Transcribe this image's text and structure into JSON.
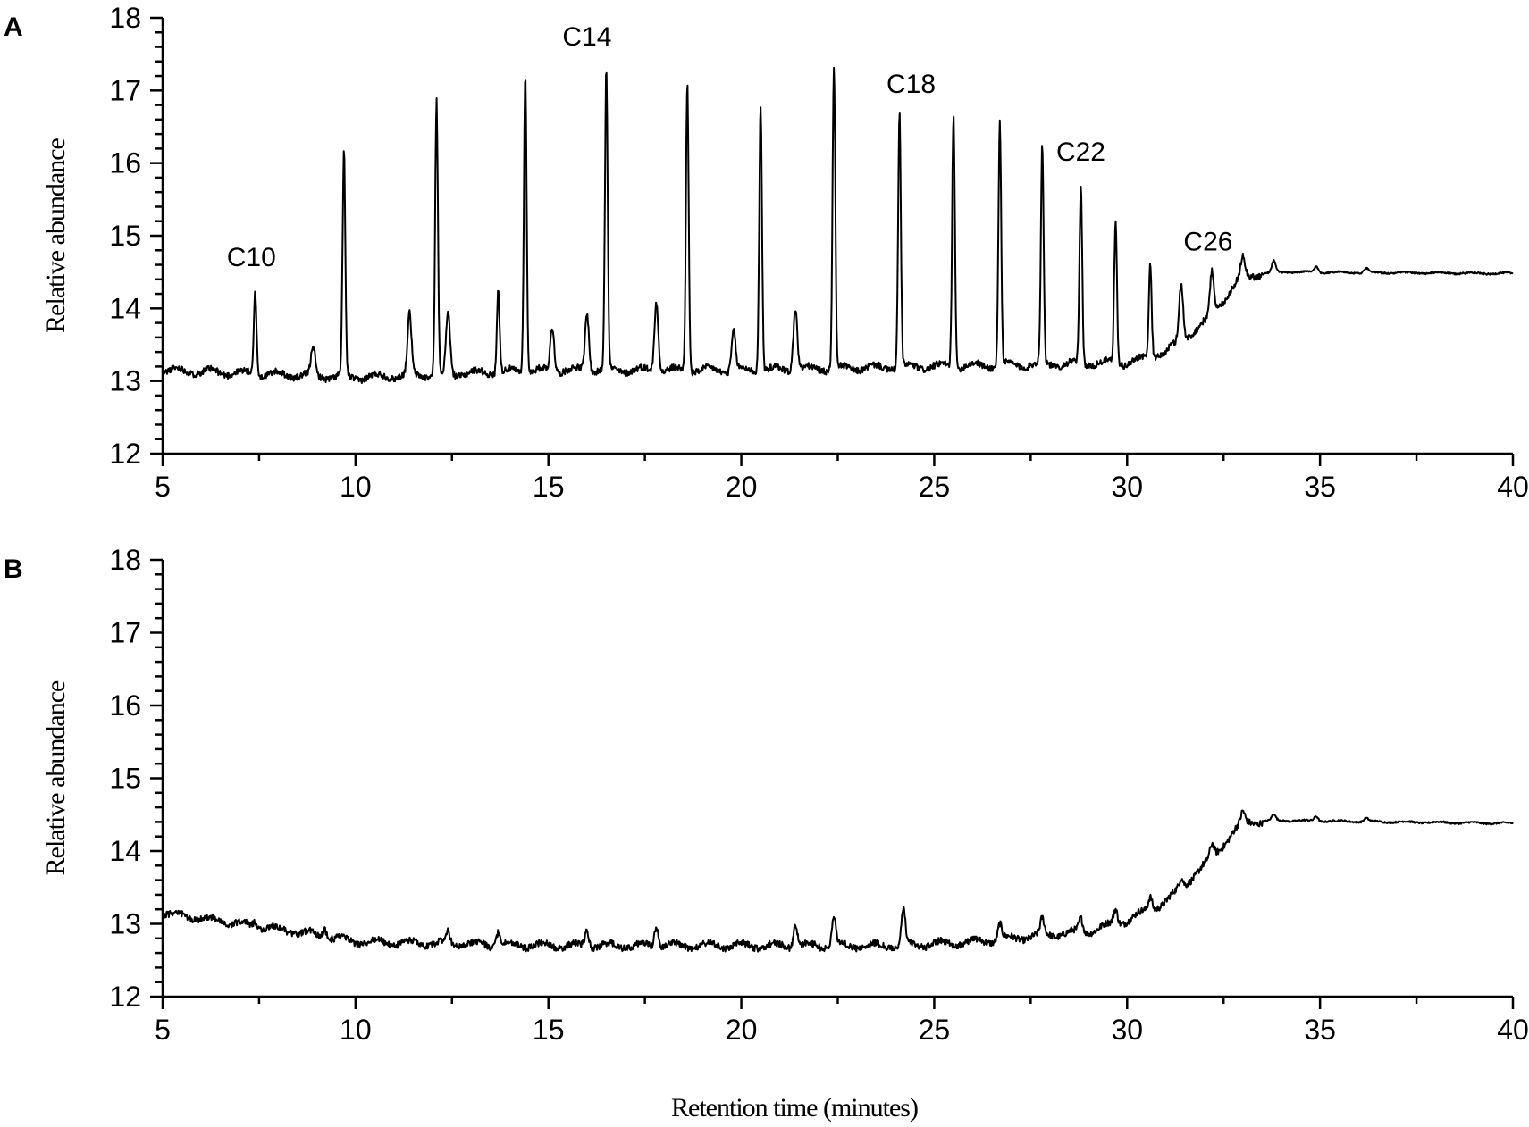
{
  "chart_data": [
    {
      "type": "line",
      "panel_label": "A",
      "title": "",
      "xlabel": "",
      "ylabel": "Relative abundance",
      "xlim": [
        5,
        40
      ],
      "ylim": [
        12,
        18
      ],
      "x_ticks": [
        5,
        10,
        15,
        20,
        25,
        30,
        35,
        40
      ],
      "y_ticks": [
        12,
        13,
        14,
        15,
        16,
        17,
        18
      ],
      "grid": false,
      "legend": "none",
      "baseline": [
        [
          5,
          13.15
        ],
        [
          10,
          13.05
        ],
        [
          15,
          13.15
        ],
        [
          20,
          13.15
        ],
        [
          25,
          13.2
        ],
        [
          30,
          13.25
        ],
        [
          31,
          13.4
        ],
        [
          32,
          13.8
        ],
        [
          33,
          14.45
        ],
        [
          34,
          14.5
        ],
        [
          40,
          14.48
        ]
      ],
      "peaks": [
        {
          "x": 7.4,
          "y": 14.25
        },
        {
          "x": 9.7,
          "y": 16.12
        },
        {
          "x": 12.1,
          "y": 16.85
        },
        {
          "x": 14.4,
          "y": 17.28
        },
        {
          "x": 16.5,
          "y": 17.3
        },
        {
          "x": 18.6,
          "y": 17.13
        },
        {
          "x": 20.5,
          "y": 16.85
        },
        {
          "x": 22.4,
          "y": 17.35
        },
        {
          "x": 24.1,
          "y": 16.68
        },
        {
          "x": 25.5,
          "y": 16.7
        },
        {
          "x": 26.7,
          "y": 16.58
        },
        {
          "x": 27.8,
          "y": 16.22
        },
        {
          "x": 28.8,
          "y": 15.7
        },
        {
          "x": 29.7,
          "y": 15.22
        },
        {
          "x": 30.6,
          "y": 14.65
        },
        {
          "x": 31.4,
          "y": 14.35
        },
        {
          "x": 32.2,
          "y": 14.5
        },
        {
          "x": 33.0,
          "y": 14.72
        },
        {
          "x": 13.7,
          "y": 14.28
        },
        {
          "x": 21.4,
          "y": 14.03
        },
        {
          "x": 11.4,
          "y": 13.9
        },
        {
          "x": 12.4,
          "y": 13.95
        },
        {
          "x": 17.8,
          "y": 14.12
        },
        {
          "x": 16.0,
          "y": 13.95
        },
        {
          "x": 15.1,
          "y": 13.75
        },
        {
          "x": 19.8,
          "y": 13.7
        },
        {
          "x": 8.9,
          "y": 13.47
        },
        {
          "x": 33.8,
          "y": 14.65
        },
        {
          "x": 34.9,
          "y": 14.58
        },
        {
          "x": 36.2,
          "y": 14.55
        }
      ],
      "annotations": [
        {
          "text": "C10",
          "x": 7.3,
          "y": 14.58
        },
        {
          "text": "C14",
          "x": 16.0,
          "y": 17.62
        },
        {
          "text": "C18",
          "x": 24.4,
          "y": 16.97
        },
        {
          "text": "C22",
          "x": 28.8,
          "y": 16.03
        },
        {
          "text": "C26",
          "x": 32.1,
          "y": 14.8
        }
      ]
    },
    {
      "type": "line",
      "panel_label": "B",
      "title": "",
      "xlabel": "Retention time (minutes)",
      "ylabel": "Relative abundance",
      "xlim": [
        5,
        40
      ],
      "ylim": [
        12,
        18
      ],
      "x_ticks": [
        5,
        10,
        15,
        20,
        25,
        30,
        35,
        40
      ],
      "y_ticks": [
        12,
        13,
        14,
        15,
        16,
        17,
        18
      ],
      "grid": false,
      "legend": "none",
      "baseline": [
        [
          5,
          13.15
        ],
        [
          7,
          13.0
        ],
        [
          9,
          12.85
        ],
        [
          10,
          12.75
        ],
        [
          15,
          12.7
        ],
        [
          20,
          12.7
        ],
        [
          24,
          12.7
        ],
        [
          26,
          12.75
        ],
        [
          28,
          12.85
        ],
        [
          29,
          12.9
        ],
        [
          30,
          13.05
        ],
        [
          31,
          13.3
        ],
        [
          32,
          13.8
        ],
        [
          33,
          14.4
        ],
        [
          34,
          14.42
        ],
        [
          40,
          14.38
        ]
      ],
      "peaks": [
        {
          "x": 7.4,
          "y": 13.05
        },
        {
          "x": 9.2,
          "y": 12.95
        },
        {
          "x": 12.4,
          "y": 12.88
        },
        {
          "x": 13.7,
          "y": 12.9
        },
        {
          "x": 16.0,
          "y": 12.92
        },
        {
          "x": 17.8,
          "y": 13.0
        },
        {
          "x": 21.4,
          "y": 13.02
        },
        {
          "x": 22.4,
          "y": 13.1
        },
        {
          "x": 24.2,
          "y": 13.18
        },
        {
          "x": 26.7,
          "y": 13.0
        },
        {
          "x": 27.8,
          "y": 13.05
        },
        {
          "x": 28.8,
          "y": 13.07
        },
        {
          "x": 29.7,
          "y": 13.2
        },
        {
          "x": 30.6,
          "y": 13.38
        },
        {
          "x": 31.4,
          "y": 13.62
        },
        {
          "x": 32.2,
          "y": 14.08
        },
        {
          "x": 33.0,
          "y": 14.52
        },
        {
          "x": 33.8,
          "y": 14.5
        },
        {
          "x": 34.9,
          "y": 14.48
        },
        {
          "x": 36.2,
          "y": 14.45
        }
      ],
      "annotations": []
    }
  ]
}
